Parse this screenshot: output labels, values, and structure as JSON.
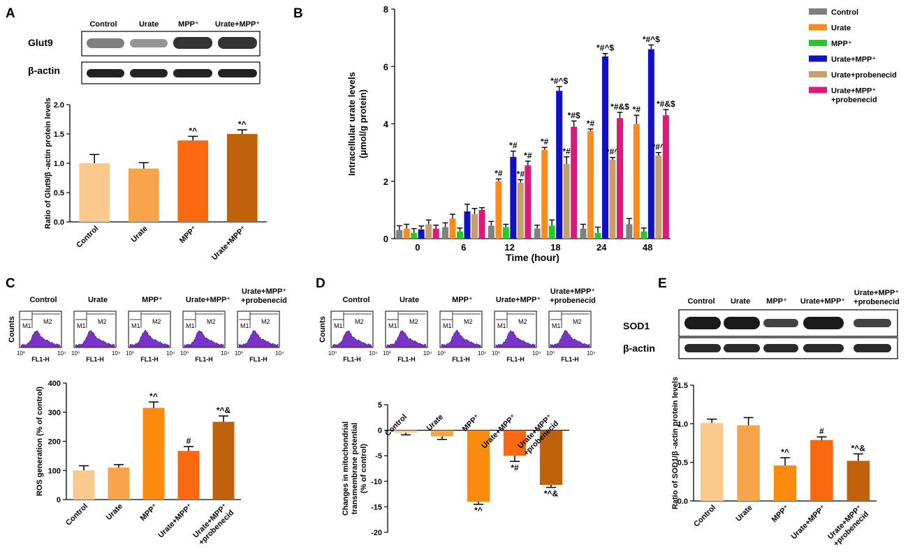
{
  "panels": {
    "A": {
      "label": "A",
      "columns": [
        "Control",
        "Urate",
        "MPP⁺",
        "Urate+MPP⁺"
      ],
      "blots": [
        "Glut9",
        "β-actin"
      ]
    },
    "B": {
      "label": "B"
    },
    "C": {
      "label": "C",
      "columns": [
        "Control",
        "Urate",
        "MPP⁺",
        "Urate+MPP⁺",
        "Urate+MPP⁺",
        "+probenecid"
      ],
      "flow": {
        "y_label": "Counts",
        "x_label": "FL1-H",
        "gate1": "M1",
        "gate2": "M2",
        "x_min": "10⁰",
        "x_max": "10⁴"
      }
    },
    "D": {
      "label": "D",
      "columns": [
        "Control",
        "Urate",
        "MPP⁺",
        "Urate+MPP⁺",
        "Urate+MPP⁺",
        "+probenecid"
      ],
      "flow": {
        "y_label": "Counts",
        "x_label": "FL1-H",
        "gate1": "M1",
        "gate2": "M2",
        "x_min": "10⁰",
        "x_max": "10⁴"
      }
    },
    "E": {
      "label": "E",
      "columns": [
        "Control",
        "Urate",
        "MPP⁺",
        "Urate+MPP⁺",
        "Urate+MPP⁺",
        "+probenecid"
      ],
      "blots": [
        "SOD1",
        "β-actin"
      ]
    }
  },
  "chart_data": [
    {
      "id": "A",
      "type": "bar",
      "categories": [
        "Control",
        "Urate",
        "MPP⁺",
        "Urate+MPP⁺"
      ],
      "values": [
        1.0,
        0.91,
        1.39,
        1.5
      ],
      "errors": [
        0.15,
        0.1,
        0.07,
        0.07
      ],
      "annotations": [
        "",
        "",
        "*^",
        "*^"
      ],
      "colors": [
        "#fcc98c",
        "#f7a44b",
        "#f96a10",
        "#c0610c"
      ],
      "ylabel": "Ratio of Glut9/β -actin protein levels",
      "ylim": [
        0,
        2.0
      ],
      "yticks": [
        0,
        0.5,
        1.0,
        1.5,
        2.0
      ],
      "ytick_labels": [
        "0.0",
        "0.5",
        "1.0",
        "1.5",
        "2.0"
      ]
    },
    {
      "id": "B",
      "type": "bar",
      "categories": [
        "0",
        "6",
        "12",
        "18",
        "24",
        "48"
      ],
      "xlabel": "Time (hour)",
      "ylabel": "Intracellular urate levels",
      "ylabel2": "(μmol/g protein)",
      "ylim": [
        0,
        8
      ],
      "yticks": [
        0,
        2,
        4,
        6,
        8
      ],
      "ytick_labels": [
        "0",
        "2",
        "4",
        "6",
        "8"
      ],
      "legend": [
        "Control",
        "Urate",
        "MPP⁺",
        "Urate+MPP⁺",
        "Urate+probenecid",
        "Urate+MPP⁺",
        "+probenecid"
      ],
      "series": [
        {
          "name": "Control",
          "color": "#808080",
          "values": [
            0.3,
            0.4,
            0.45,
            0.35,
            0.35,
            0.5
          ],
          "errors": [
            0.15,
            0.15,
            0.15,
            0.12,
            0.15,
            0.2
          ],
          "annotations": [
            "",
            "",
            "",
            "",
            "",
            ""
          ]
        },
        {
          "name": "Urate",
          "color": "#ff8c1a",
          "values": [
            0.35,
            0.7,
            2.0,
            3.1,
            3.75,
            4.0
          ],
          "errors": [
            0.15,
            0.15,
            0.08,
            0.08,
            0.07,
            0.3
          ],
          "annotations": [
            "",
            "",
            "*#",
            "*#",
            "*#",
            "*#"
          ]
        },
        {
          "name": "MPP⁺",
          "color": "#22cc22",
          "values": [
            0.2,
            0.25,
            0.4,
            0.45,
            0.2,
            0.25
          ],
          "errors": [
            0.15,
            0.12,
            0.1,
            0.2,
            0.2,
            0.12
          ],
          "annotations": [
            "",
            "",
            "",
            "",
            "",
            ""
          ]
        },
        {
          "name": "Urate+MPP⁺",
          "color": "#1010c8",
          "values": [
            0.32,
            0.95,
            2.85,
            5.15,
            6.35,
            6.6
          ],
          "errors": [
            0.12,
            0.25,
            0.2,
            0.15,
            0.1,
            0.15
          ],
          "annotations": [
            "",
            "",
            "*#",
            "*#^$",
            "*#^$",
            "*#^$"
          ]
        },
        {
          "name": "Urate+probenecid",
          "color": "#c89e6c",
          "values": [
            0.5,
            0.85,
            1.95,
            2.6,
            2.75,
            2.9
          ],
          "errors": [
            0.15,
            0.2,
            0.1,
            0.25,
            0.08,
            0.1
          ],
          "annotations": [
            "",
            "",
            "*#",
            "*#",
            "*#^",
            "*#^"
          ]
        },
        {
          "name": "Urate+MPP⁺ +probenecid",
          "color": "#e0187a",
          "values": [
            0.35,
            1.0,
            2.55,
            3.9,
            4.2,
            4.3
          ],
          "errors": [
            0.12,
            0.08,
            0.15,
            0.2,
            0.2,
            0.2
          ],
          "annotations": [
            "",
            "",
            "*#",
            "*#$",
            "*#&$",
            "*#&$"
          ]
        }
      ]
    },
    {
      "id": "C",
      "type": "bar",
      "categories": [
        "Control",
        "Urate",
        "MPP⁺",
        "Urate+MPP⁺",
        "Urate+MPP⁺ +probenecid"
      ],
      "category_lines": [
        [
          "Control"
        ],
        [
          "Urate"
        ],
        [
          "MPP⁺"
        ],
        [
          "Urate+MPP⁺"
        ],
        [
          "Urate+MPP⁺",
          "+probenecid"
        ]
      ],
      "values": [
        100,
        110,
        315,
        167,
        267
      ],
      "errors": [
        16,
        10,
        20,
        15,
        20
      ],
      "annotations": [
        "",
        "",
        "*^",
        "#",
        "*^&"
      ],
      "colors": [
        "#fcc98c",
        "#f7a44b",
        "#fb8b0e",
        "#f96a10",
        "#c0610c"
      ],
      "ylabel": "ROS generation (% of control)",
      "ylim": [
        0,
        400
      ],
      "yticks": [
        0,
        100,
        200,
        300,
        400
      ],
      "ytick_labels": [
        "0",
        "100",
        "200",
        "300",
        "400"
      ]
    },
    {
      "id": "D",
      "type": "bar",
      "categories": [
        "Control",
        "Urate",
        "MPP⁺",
        "Urate+MPP⁺",
        "Urate+MPP⁺ +probenecid"
      ],
      "category_lines": [
        [
          "Control"
        ],
        [
          "Urate"
        ],
        [
          "MPP⁺"
        ],
        [
          "Urate+MPP⁺"
        ],
        [
          "Urate+MPP⁺",
          "+probenecid"
        ]
      ],
      "values": [
        -0.5,
        -1.2,
        -14.0,
        -5.0,
        -10.7
      ],
      "errors": [
        0.4,
        0.6,
        0.5,
        1.1,
        0.5
      ],
      "annotations": [
        "",
        "",
        "*^",
        "*#",
        "*^&"
      ],
      "colors": [
        "#fcc98c",
        "#f7a44b",
        "#fb8b0e",
        "#f96a10",
        "#c0610c"
      ],
      "ylabel": "Changes in mitochondrial",
      "ylabel2": "transmembrane potential",
      "ylabel3": "(% of control)",
      "ylim": [
        -20,
        5
      ],
      "yticks": [
        5,
        0,
        -5,
        -10,
        -15,
        -20
      ],
      "ytick_labels": [
        "5",
        "0",
        "-5",
        "-10",
        "-15",
        "-20"
      ]
    },
    {
      "id": "E",
      "type": "bar",
      "categories": [
        "Control",
        "Urate",
        "MPP⁺",
        "Urate+MPP⁺",
        "Urate+MPP⁺ +probenecid"
      ],
      "category_lines": [
        [
          "Control"
        ],
        [
          "Urate"
        ],
        [
          "MPP⁺"
        ],
        [
          "Urate+MPP⁺"
        ],
        [
          "Urate+MPP⁺",
          "+probenecid"
        ]
      ],
      "values": [
        1.01,
        0.98,
        0.46,
        0.79,
        0.52
      ],
      "errors": [
        0.05,
        0.1,
        0.1,
        0.04,
        0.09
      ],
      "annotations": [
        "",
        "",
        "*^",
        "#",
        "*^&"
      ],
      "colors": [
        "#fcc98c",
        "#f7a44b",
        "#fb8b0e",
        "#f96a10",
        "#c0610c"
      ],
      "ylabel": "Ratio of SOD1/β -actin protein levels",
      "ylim": [
        0,
        1.5
      ],
      "yticks": [
        0,
        0.5,
        1.0,
        1.5
      ],
      "ytick_labels": [
        "0.0",
        "0.5",
        "1.0",
        "1.5"
      ]
    }
  ]
}
